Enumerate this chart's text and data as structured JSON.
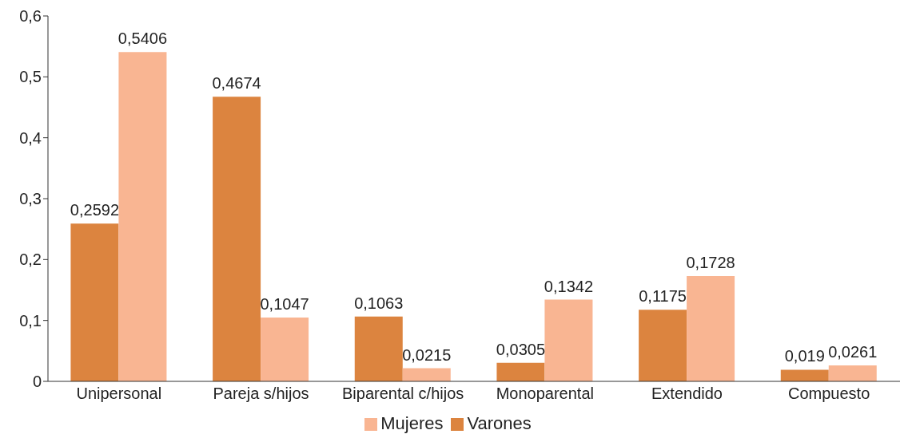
{
  "chart_data": {
    "type": "bar",
    "categories": [
      "Unipersonal",
      "Pareja s/hijos",
      "Biparental c/hijos",
      "Monoparental",
      "Extendido",
      "Compuesto"
    ],
    "series": [
      {
        "name": "Varones",
        "color": "#dc843f",
        "values": [
          0.2592,
          0.4674,
          0.1063,
          0.0305,
          0.1175,
          0.019
        ],
        "value_labels": [
          "0,2592",
          "0,4674",
          "0,1063",
          "0,0305",
          "0,1175",
          "0,019"
        ]
      },
      {
        "name": "Mujeres",
        "color": "#f9b592",
        "values": [
          0.5406,
          0.1047,
          0.0215,
          0.1342,
          0.1728,
          0.0261
        ],
        "value_labels": [
          "0,5406",
          "0,1047",
          "0,0215",
          "0,1342",
          "0,1728",
          "0,0261"
        ]
      }
    ],
    "ylim": [
      0,
      0.6
    ],
    "yticks": [
      {
        "value": 0,
        "label": "0"
      },
      {
        "value": 0.1,
        "label": "0,1"
      },
      {
        "value": 0.2,
        "label": "0,2"
      },
      {
        "value": 0.3,
        "label": "0,3"
      },
      {
        "value": 0.4,
        "label": "0,4"
      },
      {
        "value": 0.5,
        "label": "0,5"
      },
      {
        "value": 0.6,
        "label": "0,6"
      }
    ],
    "grid": false,
    "legend": "bottom"
  }
}
